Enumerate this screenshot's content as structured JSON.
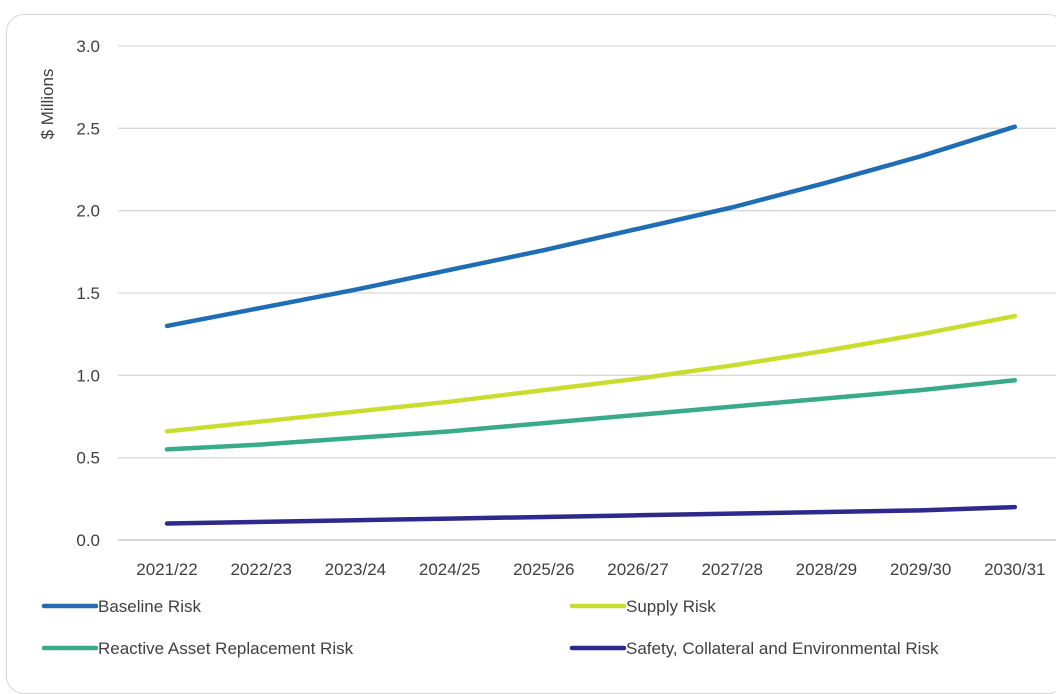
{
  "chart_data": {
    "type": "line",
    "title": "",
    "xlabel": "",
    "ylabel": "$ Millions",
    "ylim": [
      0,
      3.0
    ],
    "yticks": [
      "0.0",
      "0.5",
      "1.0",
      "1.5",
      "2.0",
      "2.5",
      "3.0"
    ],
    "grid": true,
    "legend_position": "bottom",
    "categories": [
      "2021/22",
      "2022/23",
      "2023/24",
      "2024/25",
      "2025/26",
      "2026/27",
      "2027/28",
      "2028/29",
      "2029/30",
      "2030/31"
    ],
    "series": [
      {
        "name": "Baseline Risk",
        "color": "#1f6db5",
        "values": [
          1.3,
          1.41,
          1.52,
          1.64,
          1.76,
          1.89,
          2.02,
          2.17,
          2.33,
          2.51
        ]
      },
      {
        "name": "Supply Risk",
        "color": "#c9dd2e",
        "values": [
          0.66,
          0.72,
          0.78,
          0.84,
          0.91,
          0.98,
          1.06,
          1.15,
          1.25,
          1.36
        ]
      },
      {
        "name": "Reactive Asset Replacement Risk",
        "color": "#3aab8a",
        "values": [
          0.55,
          0.58,
          0.62,
          0.66,
          0.71,
          0.76,
          0.81,
          0.86,
          0.91,
          0.97
        ]
      },
      {
        "name": "Safety, Collateral and Environmental Risk",
        "color": "#2e2a8c",
        "values": [
          0.1,
          0.11,
          0.12,
          0.13,
          0.14,
          0.15,
          0.16,
          0.17,
          0.18,
          0.2
        ]
      }
    ]
  }
}
